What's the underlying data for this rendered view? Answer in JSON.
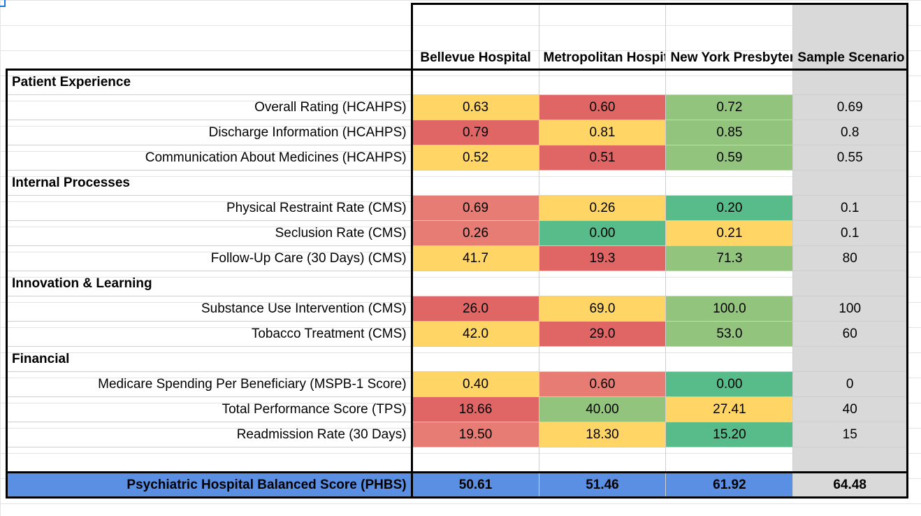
{
  "header": {
    "hospitals": [
      "Bellevue Hospital",
      "Metropolitan Hospital",
      "New York Presbyterian Hospital"
    ],
    "scenario": "Sample Scenario"
  },
  "sections": [
    {
      "title": "Patient Experience",
      "rows": [
        {
          "label": "Overall Rating (HCAHPS)",
          "values": [
            "0.63",
            "0.60",
            "0.72"
          ],
          "colors": [
            "yellow",
            "red",
            "green"
          ],
          "scenario": "0.69"
        },
        {
          "label": "Discharge Information (HCAHPS)",
          "values": [
            "0.79",
            "0.81",
            "0.85"
          ],
          "colors": [
            "red",
            "yellow",
            "green"
          ],
          "scenario": "0.8"
        },
        {
          "label": "Communication About Medicines (HCAHPS)",
          "values": [
            "0.52",
            "0.51",
            "0.59"
          ],
          "colors": [
            "yellow",
            "red",
            "green"
          ],
          "scenario": "0.55"
        }
      ]
    },
    {
      "title": "Internal Processes",
      "rows": [
        {
          "label": "Physical Restraint Rate (CMS)",
          "values": [
            "0.69",
            "0.26",
            "0.20"
          ],
          "colors": [
            "salmon",
            "yellow",
            "teal"
          ],
          "scenario": "0.1"
        },
        {
          "label": "Seclusion Rate (CMS)",
          "values": [
            "0.26",
            "0.00",
            "0.21"
          ],
          "colors": [
            "salmon",
            "teal",
            "yellow"
          ],
          "scenario": "0.1"
        },
        {
          "label": "Follow-Up Care (30 Days) (CMS)",
          "values": [
            "41.7",
            "19.3",
            "71.3"
          ],
          "colors": [
            "yellow",
            "red",
            "green"
          ],
          "scenario": "80"
        }
      ]
    },
    {
      "title": "Innovation & Learning",
      "rows": [
        {
          "label": "Substance Use Intervention (CMS)",
          "values": [
            "26.0",
            "69.0",
            "100.0"
          ],
          "colors": [
            "red",
            "yellow",
            "green"
          ],
          "scenario": "100"
        },
        {
          "label": "Tobacco Treatment (CMS)",
          "values": [
            "42.0",
            "29.0",
            "53.0"
          ],
          "colors": [
            "yellow",
            "red",
            "green"
          ],
          "scenario": "60"
        }
      ]
    },
    {
      "title": "Financial",
      "rows": [
        {
          "label": "Medicare Spending Per Beneficiary (MSPB-1 Score)",
          "values": [
            "0.40",
            "0.60",
            "0.00"
          ],
          "colors": [
            "yellow",
            "salmon",
            "teal"
          ],
          "scenario": "0"
        },
        {
          "label": "Total Performance Score (TPS)",
          "values": [
            "18.66",
            "40.00",
            "27.41"
          ],
          "colors": [
            "red",
            "green",
            "yellow"
          ],
          "scenario": "40"
        },
        {
          "label": "Readmission Rate (30 Days)",
          "values": [
            "19.50",
            "18.30",
            "15.20"
          ],
          "colors": [
            "salmon",
            "yellow",
            "teal"
          ],
          "scenario": "15"
        }
      ]
    }
  ],
  "total": {
    "label": "Psychiatric Hospital Balanced Score (PHBS)",
    "values": [
      "50.61",
      "51.46",
      "61.92"
    ],
    "scenario": "64.48"
  },
  "colors": {
    "yellow": "#ffd666",
    "red": "#e06666",
    "salmon": "#e67c73",
    "green": "#93c47d",
    "teal": "#57bb8a",
    "total_blue": "#5a8fe3",
    "scenario_gray": "#d9d9d9"
  }
}
